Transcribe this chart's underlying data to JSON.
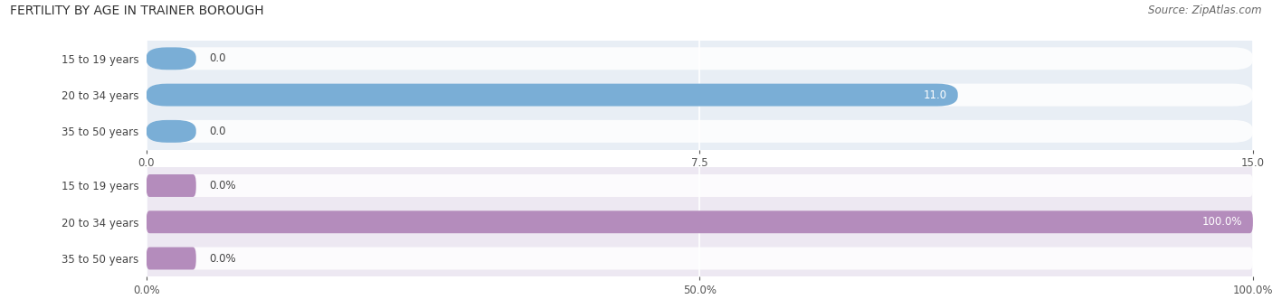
{
  "title": "FERTILITY BY AGE IN TRAINER BOROUGH",
  "source": "Source: ZipAtlas.com",
  "top_chart": {
    "categories": [
      "15 to 19 years",
      "20 to 34 years",
      "35 to 50 years"
    ],
    "values": [
      0.0,
      11.0,
      0.0
    ],
    "xlim": [
      0,
      15.0
    ],
    "xticks": [
      0.0,
      7.5,
      15.0
    ],
    "bar_color": "#7aaed6",
    "bar_bg_color": "#dce6f0",
    "value_labels": [
      "0.0",
      "11.0",
      "0.0"
    ],
    "label_inside": [
      false,
      true,
      false
    ]
  },
  "bottom_chart": {
    "categories": [
      "15 to 19 years",
      "20 to 34 years",
      "35 to 50 years"
    ],
    "values": [
      0.0,
      100.0,
      0.0
    ],
    "xlim": [
      0,
      100.0
    ],
    "xticks": [
      0.0,
      50.0,
      100.0
    ],
    "bar_color": "#b48cbc",
    "bar_bg_color": "#e8dff0",
    "value_labels": [
      "0.0%",
      "100.0%",
      "0.0%"
    ],
    "label_inside": [
      false,
      true,
      false
    ]
  },
  "panel_bg_top": "#e8eef5",
  "panel_bg_bottom": "#ede8f2",
  "bar_height": 0.62,
  "label_fontsize": 8.5,
  "tick_fontsize": 8.5,
  "title_fontsize": 10,
  "source_fontsize": 8.5,
  "category_fontsize": 8.5
}
